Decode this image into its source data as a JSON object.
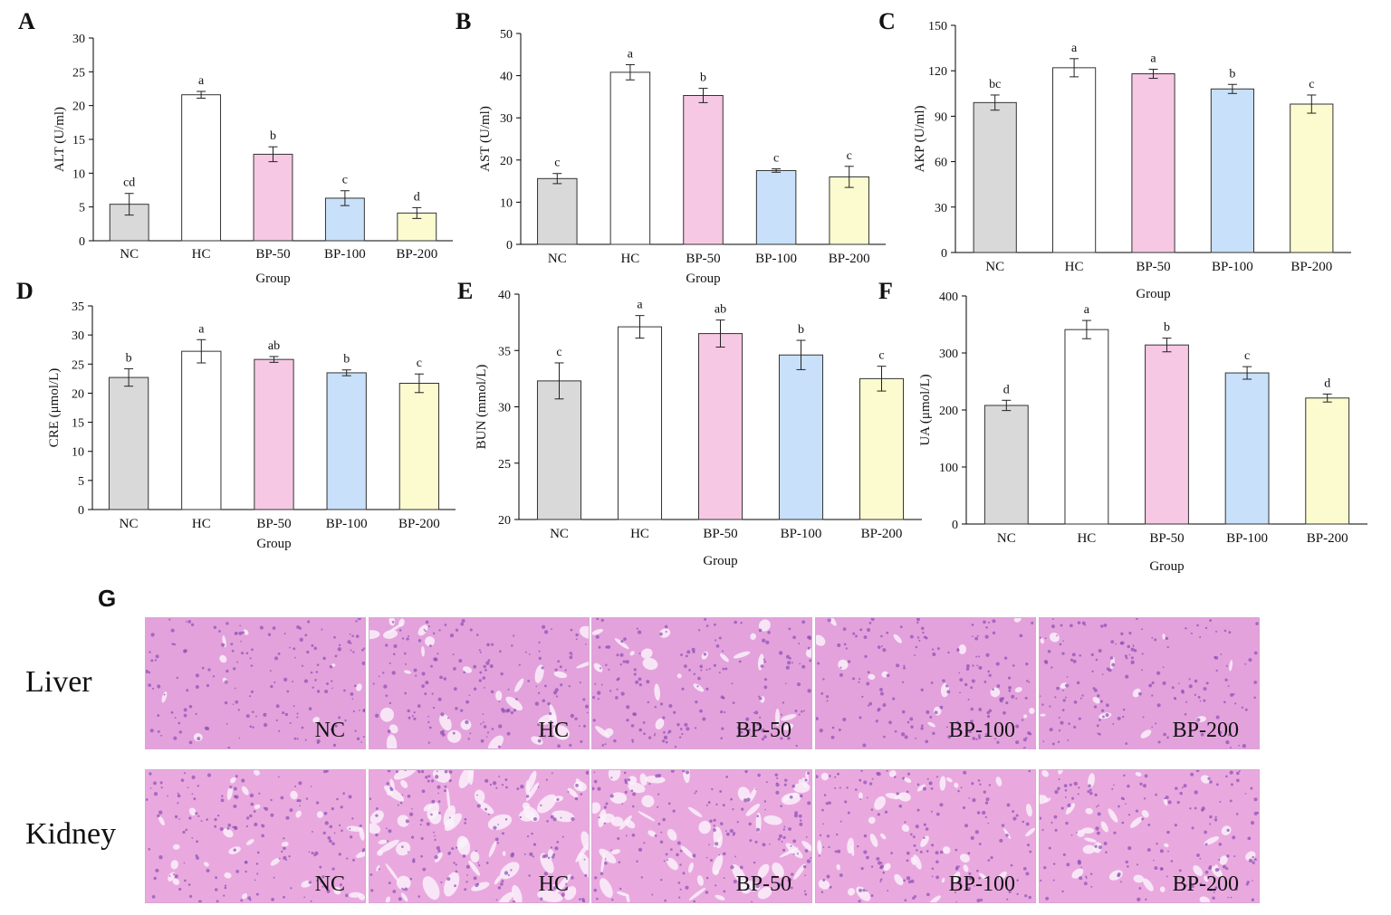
{
  "colors": {
    "axis": "#000000",
    "bar_stroke": "#333333",
    "group_fills": [
      "#d9d9d9",
      "#ffffff",
      "#f7c8e4",
      "#c8e0fa",
      "#fbfbcf"
    ],
    "tissue_liver_base": "#e3a2dc",
    "tissue_kidney_base": "#e9a9df",
    "nucleus": "#8a4fb4",
    "lumen": "#faf1fa"
  },
  "chart_data": [
    {
      "panel": "A",
      "type": "bar",
      "categories": [
        "NC",
        "HC",
        "BP-50",
        "BP-100",
        "BP-200"
      ],
      "values": [
        5.4,
        21.6,
        12.8,
        6.3,
        4.1
      ],
      "errors": [
        1.6,
        0.5,
        1.1,
        1.1,
        0.8
      ],
      "labels": [
        "cd",
        "a",
        "b",
        "c",
        "d"
      ],
      "ylabel": "ALT (U/ml)",
      "xlabel": "Group",
      "ylim": [
        0,
        30
      ],
      "yticks": [
        0,
        5,
        10,
        15,
        20,
        25,
        30
      ]
    },
    {
      "panel": "B",
      "type": "bar",
      "categories": [
        "NC",
        "HC",
        "BP-50",
        "BP-100",
        "BP-200"
      ],
      "values": [
        15.6,
        40.8,
        35.3,
        17.5,
        16.0
      ],
      "errors": [
        1.2,
        1.8,
        1.7,
        0.4,
        2.5
      ],
      "labels": [
        "c",
        "a",
        "b",
        "c",
        "c"
      ],
      "ylabel": "AST (U/ml)",
      "xlabel": "Group",
      "ylim": [
        0,
        50
      ],
      "yticks": [
        0,
        10,
        20,
        30,
        40,
        50
      ]
    },
    {
      "panel": "C",
      "type": "bar",
      "categories": [
        "NC",
        "HC",
        "BP-50",
        "BP-100",
        "BP-200"
      ],
      "values": [
        99,
        122,
        118,
        108,
        98
      ],
      "errors": [
        5,
        6,
        3,
        3,
        6
      ],
      "labels": [
        "bc",
        "a",
        "a",
        "b",
        "c"
      ],
      "ylabel": "AKP (U/ml)",
      "xlabel": "Group",
      "ylim": [
        0,
        150
      ],
      "yticks": [
        0,
        30,
        60,
        90,
        120,
        150
      ]
    },
    {
      "panel": "D",
      "type": "bar",
      "categories": [
        "NC",
        "HC",
        "BP-50",
        "BP-100",
        "BP-200"
      ],
      "values": [
        22.7,
        27.2,
        25.8,
        23.5,
        21.7
      ],
      "errors": [
        1.5,
        2.0,
        0.5,
        0.5,
        1.6
      ],
      "labels": [
        "b",
        "a",
        "ab",
        "b",
        "c"
      ],
      "ylabel": "CRE (μmol/L)",
      "xlabel": "Group",
      "ylim": [
        0,
        35
      ],
      "yticks": [
        0,
        5,
        10,
        15,
        20,
        25,
        30,
        35
      ]
    },
    {
      "panel": "E",
      "type": "bar",
      "categories": [
        "NC",
        "HC",
        "BP-50",
        "BP-100",
        "BP-200"
      ],
      "values": [
        32.3,
        37.1,
        36.5,
        34.6,
        32.5
      ],
      "errors": [
        1.6,
        1.0,
        1.2,
        1.3,
        1.1
      ],
      "labels": [
        "c",
        "a",
        "ab",
        "b",
        "c"
      ],
      "ylabel": "BUN (mmol/L)",
      "xlabel": "Group",
      "ylim": [
        20,
        40
      ],
      "yticks": [
        20,
        25,
        30,
        35,
        40
      ]
    },
    {
      "panel": "F",
      "type": "bar",
      "categories": [
        "NC",
        "HC",
        "BP-50",
        "BP-100",
        "BP-200"
      ],
      "values": [
        208,
        341,
        314,
        265,
        221
      ],
      "errors": [
        9,
        16,
        12,
        11,
        7
      ],
      "labels": [
        "d",
        "a",
        "b",
        "c",
        "d"
      ],
      "ylabel": "UA (μmol/L)",
      "xlabel": "Group",
      "ylim": [
        0,
        400
      ],
      "yticks": [
        0,
        100,
        200,
        300,
        400
      ]
    }
  ],
  "histology": {
    "panel": "G",
    "rows": [
      {
        "label": "Liver",
        "tissue": "liver",
        "groups": [
          "NC",
          "HC",
          "BP-50",
          "BP-100",
          "BP-200"
        ]
      },
      {
        "label": "Kidney",
        "tissue": "kidney",
        "groups": [
          "NC",
          "HC",
          "BP-50",
          "BP-100",
          "BP-200"
        ]
      }
    ]
  }
}
